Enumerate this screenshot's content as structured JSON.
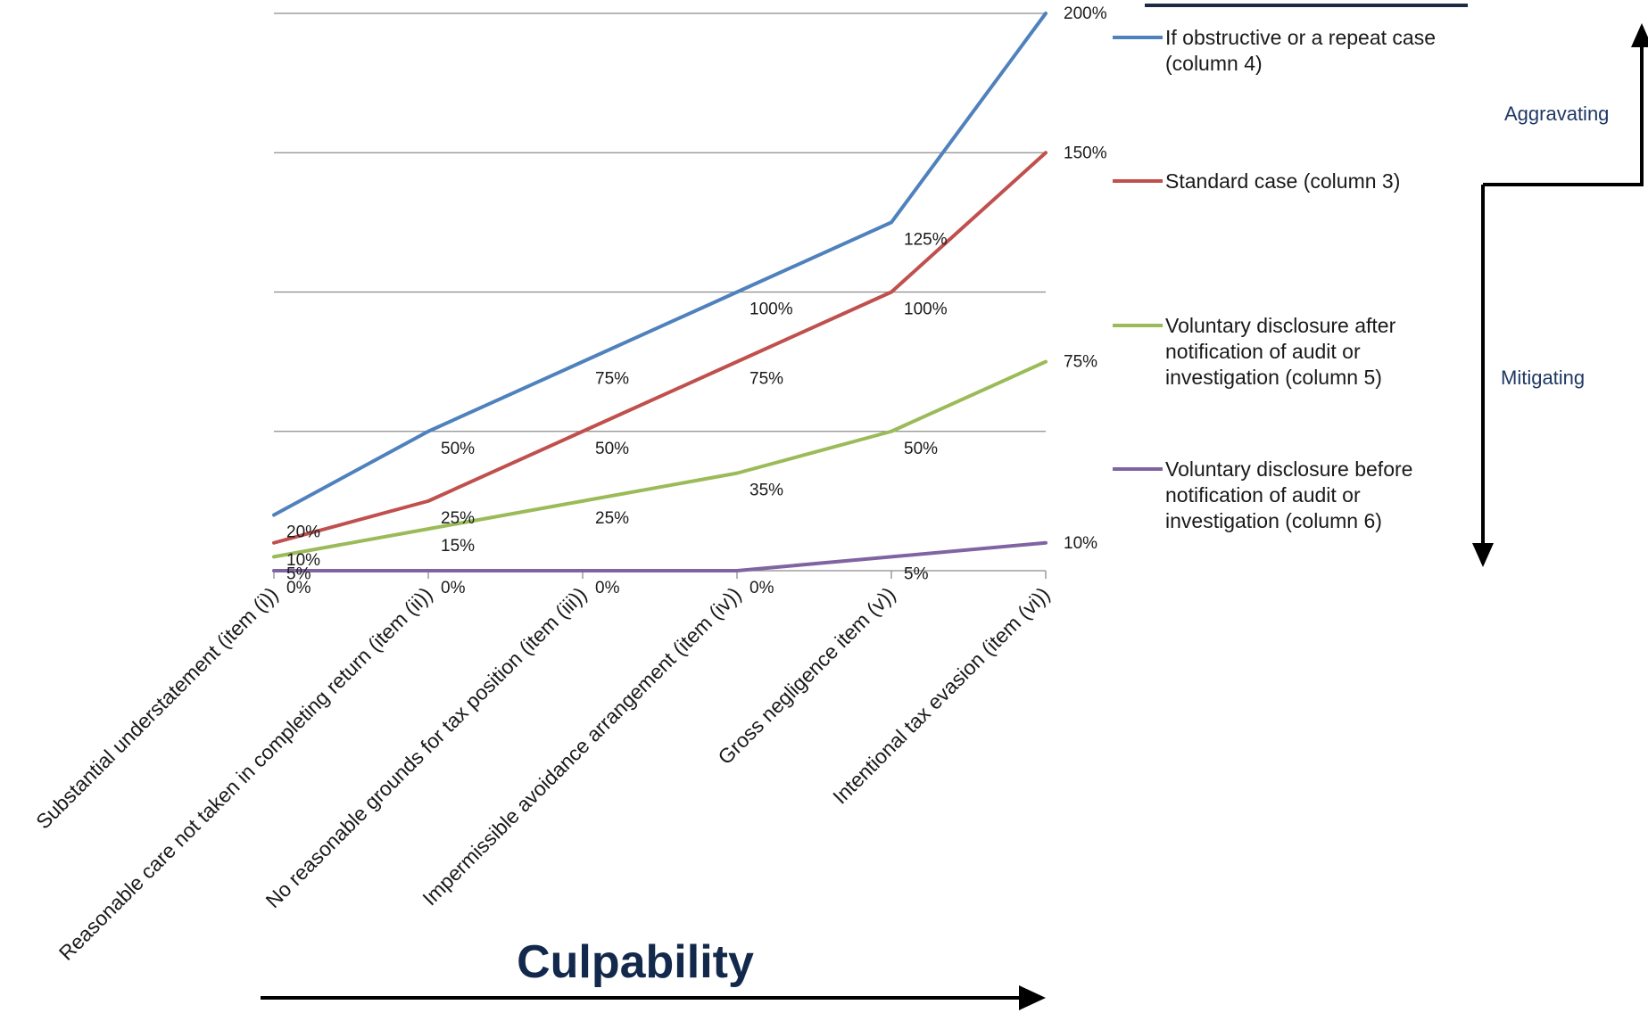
{
  "chart_data": {
    "type": "line",
    "categories": [
      "Substantial understatement (item (i))",
      "Reasonable care not taken in completing return (item (ii))",
      "No reasonable grounds for tax position (item (iii))",
      "Impermissible avoidance arrangement (item (iv))",
      "Gross negligence item (v))",
      "Intentional tax evasion (item (vi))"
    ],
    "series": [
      {
        "name": "If obstructive or a repeat case (column 4)",
        "color": "#4f81bd",
        "values": [
          20,
          50,
          75,
          100,
          125,
          200
        ],
        "labels": [
          "20%",
          "50%",
          "75%",
          "100%",
          "125%",
          "200%"
        ]
      },
      {
        "name": "Standard case (column 3)",
        "color": "#c0504d",
        "values": [
          10,
          25,
          50,
          75,
          100,
          150
        ],
        "labels": [
          "10%",
          "25%",
          "50%",
          "75%",
          "100%",
          "150%"
        ]
      },
      {
        "name": "Voluntary disclosure after notification of audit or investigation (column 5)",
        "color": "#9bbb59",
        "values": [
          5,
          15,
          25,
          35,
          50,
          75
        ],
        "labels": [
          "5%",
          "15%",
          "25%",
          "35%",
          "50%",
          "75%"
        ]
      },
      {
        "name": "Voluntary disclosure before notification of audit or investigation (column 6)",
        "color": "#8064a2",
        "values": [
          0,
          0,
          0,
          0,
          5,
          10
        ],
        "labels": [
          "0%",
          "0%",
          "0%",
          "0%",
          "5%",
          "10%"
        ]
      }
    ],
    "ylim": [
      0,
      200
    ],
    "grid": true,
    "legend_position": "right"
  },
  "legend": [
    {
      "lines": [
        "If obstructive or a repeat case",
        "(column 4)"
      ]
    },
    {
      "lines": [
        "Standard case (column 3)"
      ]
    },
    {
      "lines": [
        "Voluntary disclosure after",
        "notification of audit or",
        "investigation (column 5)"
      ]
    },
    {
      "lines": [
        "Voluntary disclosure before",
        "notification of audit or",
        "investigation (column 6)"
      ]
    }
  ],
  "annotations": {
    "aggravating": "Aggravating",
    "mitigating": "Mitigating",
    "culpability": "Culpability"
  }
}
